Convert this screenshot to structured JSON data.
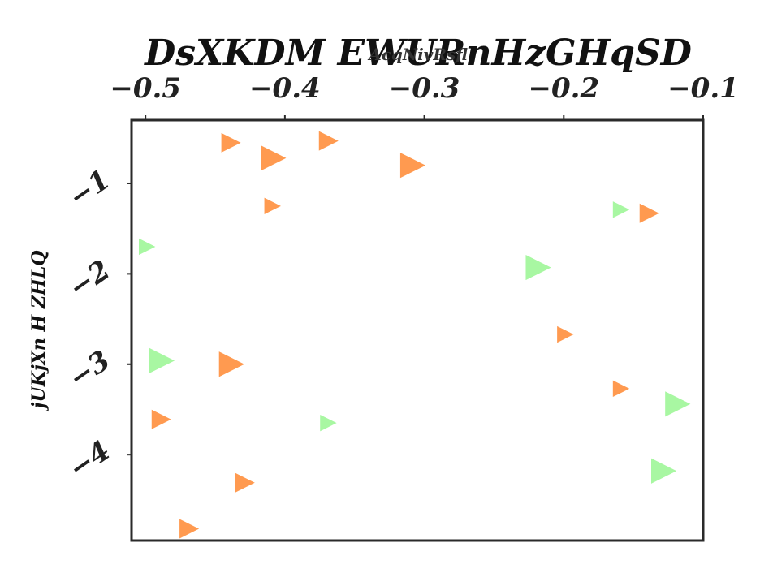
{
  "chart_data": {
    "type": "scatter",
    "title": "DsXKDM EWURnHzGHqSD",
    "xlabel": "AcqNivRsfl",
    "ylabel": "jUKjXn H ZHLQ",
    "xlim": [
      -0.51,
      -0.1
    ],
    "ylim": [
      -4.95,
      -0.3
    ],
    "x_axis_position": "top",
    "grid": false,
    "legend": "none",
    "marker": "triangle-right",
    "x_ticks": [
      -0.5,
      -0.4,
      -0.3,
      -0.2,
      -0.1
    ],
    "x_tick_labels": [
      "−0.5",
      "−0.4",
      "−0.3",
      "−0.2",
      "−0.1"
    ],
    "y_ticks": [
      -1,
      -2,
      -3,
      -4
    ],
    "y_tick_labels": [
      "−1",
      "−2",
      "−3",
      "−4"
    ],
    "colors": {
      "orange": "#ff9a50",
      "green": "#a8f7a2",
      "frame": "#2a2a2a",
      "text": "#222222"
    },
    "series": [
      {
        "color": "#ff9a50",
        "x": [
          -0.44,
          -0.41,
          -0.37,
          -0.31,
          -0.41,
          -0.14,
          -0.2,
          -0.16,
          -0.44,
          -0.49,
          -0.43,
          -0.47
        ],
        "y": [
          -0.55,
          -0.72,
          -0.53,
          -0.8,
          -1.25,
          -1.33,
          -2.67,
          -3.27,
          -3.0,
          -3.61,
          -4.31,
          -4.82
        ],
        "sizes": [
          1.0,
          1.3,
          1.0,
          1.3,
          0.85,
          1.0,
          0.85,
          0.85,
          1.3,
          1.0,
          1.0,
          1.0
        ]
      },
      {
        "color": "#a8f7a2",
        "x": [
          -0.5,
          -0.16,
          -0.22,
          -0.49,
          -0.37,
          -0.12,
          -0.13
        ],
        "y": [
          -1.7,
          -1.29,
          -1.93,
          -2.96,
          -3.65,
          -3.44,
          -4.18
        ],
        "sizes": [
          0.85,
          0.85,
          1.3,
          1.3,
          0.85,
          1.3,
          1.3
        ]
      }
    ]
  }
}
